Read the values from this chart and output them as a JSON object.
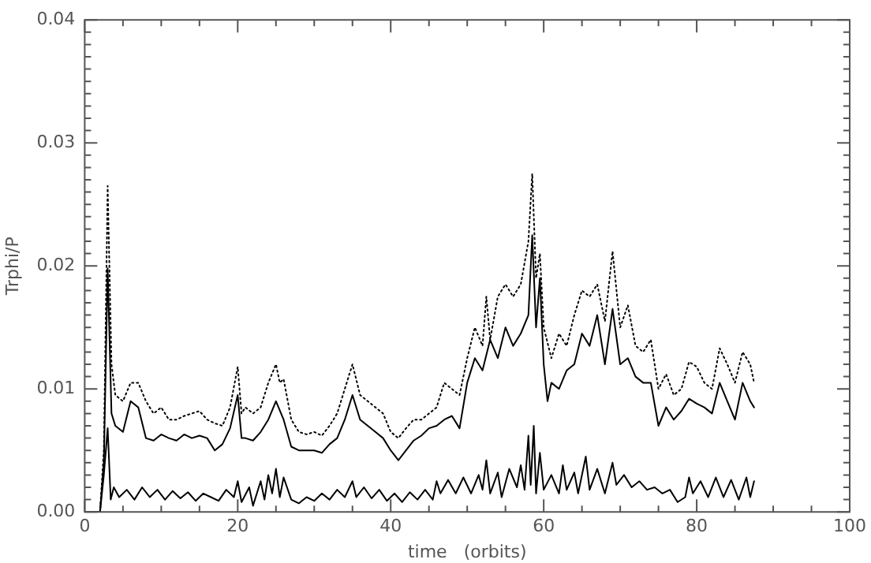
{
  "chart_data": {
    "type": "line",
    "xlabel": "time   (orbits)",
    "ylabel": "Trphi/P",
    "xlim": [
      0,
      100
    ],
    "ylim": [
      0,
      0.04
    ],
    "xticks": [
      0,
      20,
      40,
      60,
      80,
      100
    ],
    "yticks": [
      {
        "value": 0,
        "label": "0.00"
      },
      {
        "value": 0.01,
        "label": "0.01"
      },
      {
        "value": 0.02,
        "label": "0.02"
      },
      {
        "value": 0.03,
        "label": "0.03"
      },
      {
        "value": 0.04,
        "label": "0.04"
      }
    ],
    "grid": false,
    "legend": false,
    "marker": "none",
    "series": [
      {
        "color": "#000000",
        "line_style": "dotted",
        "x": [
          0,
          2,
          2.5,
          3,
          3.5,
          4,
          5,
          6,
          7,
          8,
          9,
          10,
          11,
          12,
          13,
          14,
          15,
          16,
          17,
          18,
          19,
          20,
          20.5,
          21,
          22,
          23,
          24,
          25,
          25.5,
          26,
          27,
          28,
          29,
          30,
          31,
          32,
          33,
          34,
          35,
          36,
          37,
          38,
          39,
          40,
          41,
          42,
          43,
          44,
          45,
          46,
          47,
          48,
          49,
          50,
          51,
          52,
          52.5,
          53,
          54,
          55,
          56,
          57,
          58,
          58.5,
          59,
          59.5,
          60,
          61,
          62,
          63,
          64,
          65,
          66,
          67,
          68,
          69,
          70,
          71,
          72,
          73,
          74,
          75,
          76,
          77,
          78,
          79,
          80,
          81,
          82,
          83,
          84,
          85,
          86,
          87,
          87.5
        ],
        "values": [
          0,
          0,
          0.005,
          0.0265,
          0.012,
          0.0095,
          0.009,
          0.0105,
          0.0105,
          0.009,
          0.008,
          0.0085,
          0.0075,
          0.0075,
          0.0078,
          0.008,
          0.0082,
          0.0075,
          0.0072,
          0.007,
          0.0085,
          0.0118,
          0.008,
          0.0085,
          0.008,
          0.0085,
          0.0105,
          0.012,
          0.0105,
          0.0108,
          0.0075,
          0.0065,
          0.0063,
          0.0065,
          0.0062,
          0.007,
          0.008,
          0.01,
          0.012,
          0.0095,
          0.009,
          0.0085,
          0.008,
          0.0065,
          0.006,
          0.0068,
          0.0075,
          0.0075,
          0.008,
          0.0085,
          0.0105,
          0.01,
          0.0095,
          0.0125,
          0.015,
          0.0135,
          0.0175,
          0.014,
          0.0175,
          0.0185,
          0.0175,
          0.0185,
          0.022,
          0.0275,
          0.019,
          0.021,
          0.015,
          0.0125,
          0.0145,
          0.0135,
          0.016,
          0.018,
          0.0175,
          0.0185,
          0.0155,
          0.0212,
          0.015,
          0.0168,
          0.0135,
          0.013,
          0.014,
          0.01,
          0.0112,
          0.0095,
          0.01,
          0.0122,
          0.0118,
          0.0105,
          0.01,
          0.0133,
          0.012,
          0.0105,
          0.013,
          0.012,
          0.0105
        ]
      },
      {
        "color": "#000000",
        "line_style": "solid",
        "x": [
          0,
          2,
          2.5,
          3,
          3.5,
          4,
          5,
          6,
          7,
          8,
          9,
          10,
          11,
          12,
          13,
          14,
          15,
          16,
          17,
          18,
          19,
          20,
          20.5,
          21,
          22,
          23,
          24,
          25,
          26,
          27,
          28,
          29,
          30,
          31,
          32,
          33,
          34,
          35,
          36,
          37,
          38,
          39,
          40,
          41,
          42,
          43,
          44,
          45,
          46,
          47,
          48,
          49,
          50,
          51,
          52,
          53,
          54,
          55,
          56,
          57,
          58,
          58.5,
          59,
          59.5,
          60,
          60.5,
          61,
          62,
          63,
          64,
          65,
          66,
          67,
          68,
          69,
          70,
          71,
          72,
          73,
          74,
          75,
          76,
          77,
          78,
          79,
          80,
          81,
          82,
          83,
          84,
          85,
          86,
          87,
          87.5
        ],
        "values": [
          0,
          0,
          0.004,
          0.0198,
          0.008,
          0.007,
          0.0065,
          0.009,
          0.0085,
          0.006,
          0.0058,
          0.0063,
          0.006,
          0.0058,
          0.0063,
          0.006,
          0.0062,
          0.006,
          0.005,
          0.0055,
          0.0068,
          0.0095,
          0.006,
          0.006,
          0.0058,
          0.0065,
          0.0075,
          0.009,
          0.0075,
          0.0053,
          0.005,
          0.005,
          0.005,
          0.0048,
          0.0055,
          0.006,
          0.0075,
          0.0095,
          0.0075,
          0.007,
          0.0065,
          0.006,
          0.005,
          0.0042,
          0.005,
          0.0058,
          0.0062,
          0.0068,
          0.007,
          0.0075,
          0.0078,
          0.0068,
          0.0105,
          0.0125,
          0.0115,
          0.014,
          0.0125,
          0.015,
          0.0135,
          0.0145,
          0.016,
          0.0225,
          0.015,
          0.019,
          0.012,
          0.009,
          0.0105,
          0.01,
          0.0115,
          0.012,
          0.0145,
          0.0135,
          0.016,
          0.012,
          0.0165,
          0.012,
          0.0125,
          0.011,
          0.0105,
          0.0105,
          0.007,
          0.0085,
          0.0075,
          0.0082,
          0.0092,
          0.0088,
          0.0085,
          0.008,
          0.0105,
          0.009,
          0.0075,
          0.0105,
          0.009,
          0.0085
        ]
      },
      {
        "color": "#000000",
        "line_style": "solid",
        "x": [
          0,
          2,
          2.5,
          3,
          3.4,
          3.8,
          4.5,
          5.5,
          6.5,
          7.5,
          8.5,
          9.5,
          10.5,
          11.5,
          12.5,
          13.5,
          14.5,
          15.5,
          16.5,
          17.5,
          18.5,
          19.5,
          20,
          20.5,
          21.5,
          22,
          23,
          23.5,
          24,
          24.5,
          25,
          25.5,
          26,
          27,
          28,
          29,
          30,
          31,
          32,
          33,
          34,
          35,
          35.5,
          36.5,
          37.5,
          38.5,
          39.5,
          40.5,
          41.5,
          42.5,
          43.5,
          44.5,
          45.5,
          46,
          46.5,
          47.5,
          48.5,
          49.5,
          50.5,
          51.5,
          52,
          52.5,
          53,
          54,
          54.5,
          55.5,
          56.5,
          57,
          57.5,
          58,
          58.3,
          58.7,
          59,
          59.5,
          60,
          61,
          62,
          62.5,
          63,
          64,
          64.5,
          65.5,
          66,
          67,
          68,
          69,
          69.5,
          70.5,
          71.5,
          72.5,
          73.5,
          74.5,
          75.5,
          76.5,
          77.5,
          78.5,
          79,
          79.5,
          80.5,
          81.5,
          82.5,
          83.5,
          84.5,
          85.5,
          86.5,
          87,
          87.5
        ],
        "values": [
          0,
          0,
          0.003,
          0.0068,
          0.001,
          0.002,
          0.0012,
          0.0018,
          0.001,
          0.002,
          0.0012,
          0.0018,
          0.001,
          0.0017,
          0.0011,
          0.0016,
          0.0009,
          0.0015,
          0.0012,
          0.0009,
          0.0018,
          0.0012,
          0.0025,
          0.0008,
          0.002,
          0.0005,
          0.0025,
          0.001,
          0.003,
          0.0015,
          0.0035,
          0.0012,
          0.0028,
          0.001,
          0.0007,
          0.0012,
          0.0009,
          0.0015,
          0.001,
          0.0018,
          0.0012,
          0.0025,
          0.0012,
          0.002,
          0.0011,
          0.0018,
          0.0009,
          0.0015,
          0.0008,
          0.0016,
          0.001,
          0.0018,
          0.001,
          0.0025,
          0.0015,
          0.0026,
          0.0015,
          0.0028,
          0.0015,
          0.003,
          0.0018,
          0.0042,
          0.0015,
          0.0032,
          0.0012,
          0.0035,
          0.002,
          0.0038,
          0.0018,
          0.0062,
          0.0022,
          0.007,
          0.0015,
          0.0048,
          0.0018,
          0.003,
          0.0015,
          0.0038,
          0.0018,
          0.0032,
          0.0015,
          0.0045,
          0.0018,
          0.0035,
          0.0015,
          0.004,
          0.0022,
          0.003,
          0.002,
          0.0025,
          0.0018,
          0.002,
          0.0015,
          0.0018,
          0.0008,
          0.0012,
          0.0028,
          0.0015,
          0.0025,
          0.0012,
          0.0028,
          0.0012,
          0.0026,
          0.001,
          0.0028,
          0.0012,
          0.0025
        ]
      }
    ]
  }
}
